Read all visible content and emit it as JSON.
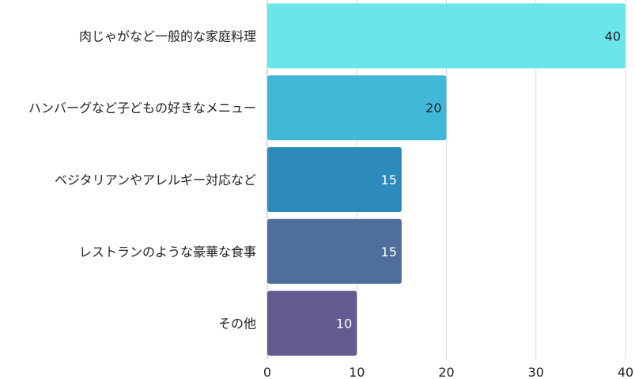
{
  "chart_data": {
    "type": "bar",
    "orientation": "horizontal",
    "categories": [
      "肉じゃがなど一般的な家庭料理",
      "ハンバーグなど子どもの好きなメニュー",
      "ベジタリアンやアレルギー対応など",
      "レストランのような豪華な食事",
      "その他"
    ],
    "values": [
      40,
      20,
      15,
      15,
      10
    ],
    "colors": [
      "#6ae6ea",
      "#42b8d8",
      "#2c8bbb",
      "#4f6e99",
      "#625a91"
    ],
    "value_label_colors": [
      "#222222",
      "#222222",
      "#ffffff",
      "#ffffff",
      "#ffffff"
    ],
    "xlim": [
      0,
      40
    ],
    "xticks": [
      0,
      10,
      20,
      30,
      40
    ],
    "grid": true,
    "data_labels": true,
    "title": "",
    "xlabel": "",
    "ylabel": ""
  }
}
